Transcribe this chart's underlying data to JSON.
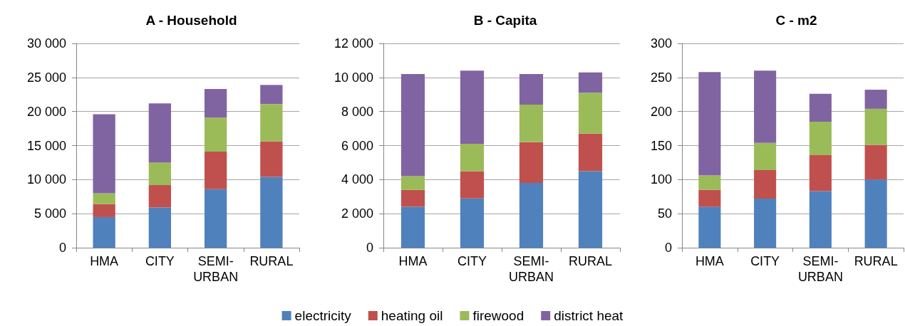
{
  "chart_data": [
    {
      "type": "bar",
      "title": "A - Household",
      "categories": [
        "HMA",
        "CITY",
        "SEMI-URBAN",
        "RURAL"
      ],
      "stacked": true,
      "grid": "y",
      "ylim": [
        0,
        30000
      ],
      "yticks": [
        0,
        {
          "value": 5000,
          "label": "5 000"
        },
        {
          "value": 10000,
          "label": "10 000"
        },
        {
          "value": 15000,
          "label": "15 000"
        },
        {
          "value": 20000,
          "label": "20 000"
        },
        {
          "value": 25000,
          "label": "25 000"
        },
        {
          "value": 30000,
          "label": "30 000"
        }
      ],
      "series": [
        {
          "color": "#4f81bd",
          "values": [
            4500,
            5900,
            8600,
            10400
          ]
        },
        {
          "color": "#c0504d",
          "values": [
            1900,
            3300,
            5500,
            5200
          ]
        },
        {
          "color": "#9bbb59",
          "values": [
            1600,
            3300,
            5000,
            5500
          ]
        },
        {
          "color": "#8064a2",
          "values": [
            11600,
            8700,
            4200,
            2800
          ]
        }
      ]
    },
    {
      "type": "bar",
      "title": "B - Capita",
      "categories": [
        "HMA",
        "CITY",
        "SEMI-URBAN",
        "RURAL"
      ],
      "stacked": true,
      "grid": "y",
      "legend": "bottom",
      "ylim": [
        0,
        12000
      ],
      "yticks": [
        0,
        {
          "value": 2000,
          "label": "2 000"
        },
        {
          "value": 4000,
          "label": "4 000"
        },
        {
          "value": 6000,
          "label": "6 000"
        },
        {
          "value": 8000,
          "label": "8 000"
        },
        {
          "value": 10000,
          "label": "10 000"
        },
        {
          "value": 12000,
          "label": "12 000"
        }
      ],
      "series": [
        {
          "name": "electricity",
          "color": "#4f81bd",
          "values": [
            2400,
            2900,
            3800,
            4500
          ]
        },
        {
          "name": "heating oil",
          "color": "#c0504d",
          "values": [
            1000,
            1600,
            2400,
            2200
          ]
        },
        {
          "name": "firewood",
          "color": "#9bbb59",
          "values": [
            800,
            1600,
            2200,
            2400
          ]
        },
        {
          "name": "district heat",
          "color": "#8064a2",
          "values": [
            6000,
            4300,
            1800,
            1200
          ]
        }
      ]
    },
    {
      "type": "bar",
      "title": "C - m2",
      "categories": [
        "HMA",
        "CITY",
        "SEMI-URBAN",
        "RURAL"
      ],
      "stacked": true,
      "grid": "y",
      "ylim": [
        0,
        300
      ],
      "yticks": [
        0,
        50,
        100,
        150,
        200,
        250,
        300
      ],
      "series": [
        {
          "color": "#4f81bd",
          "values": [
            60,
            72,
            83,
            100
          ]
        },
        {
          "color": "#c0504d",
          "values": [
            25,
            42,
            53,
            51
          ]
        },
        {
          "color": "#9bbb59",
          "values": [
            21,
            40,
            49,
            53
          ]
        },
        {
          "color": "#8064a2",
          "values": [
            152,
            106,
            41,
            28
          ]
        }
      ]
    }
  ]
}
